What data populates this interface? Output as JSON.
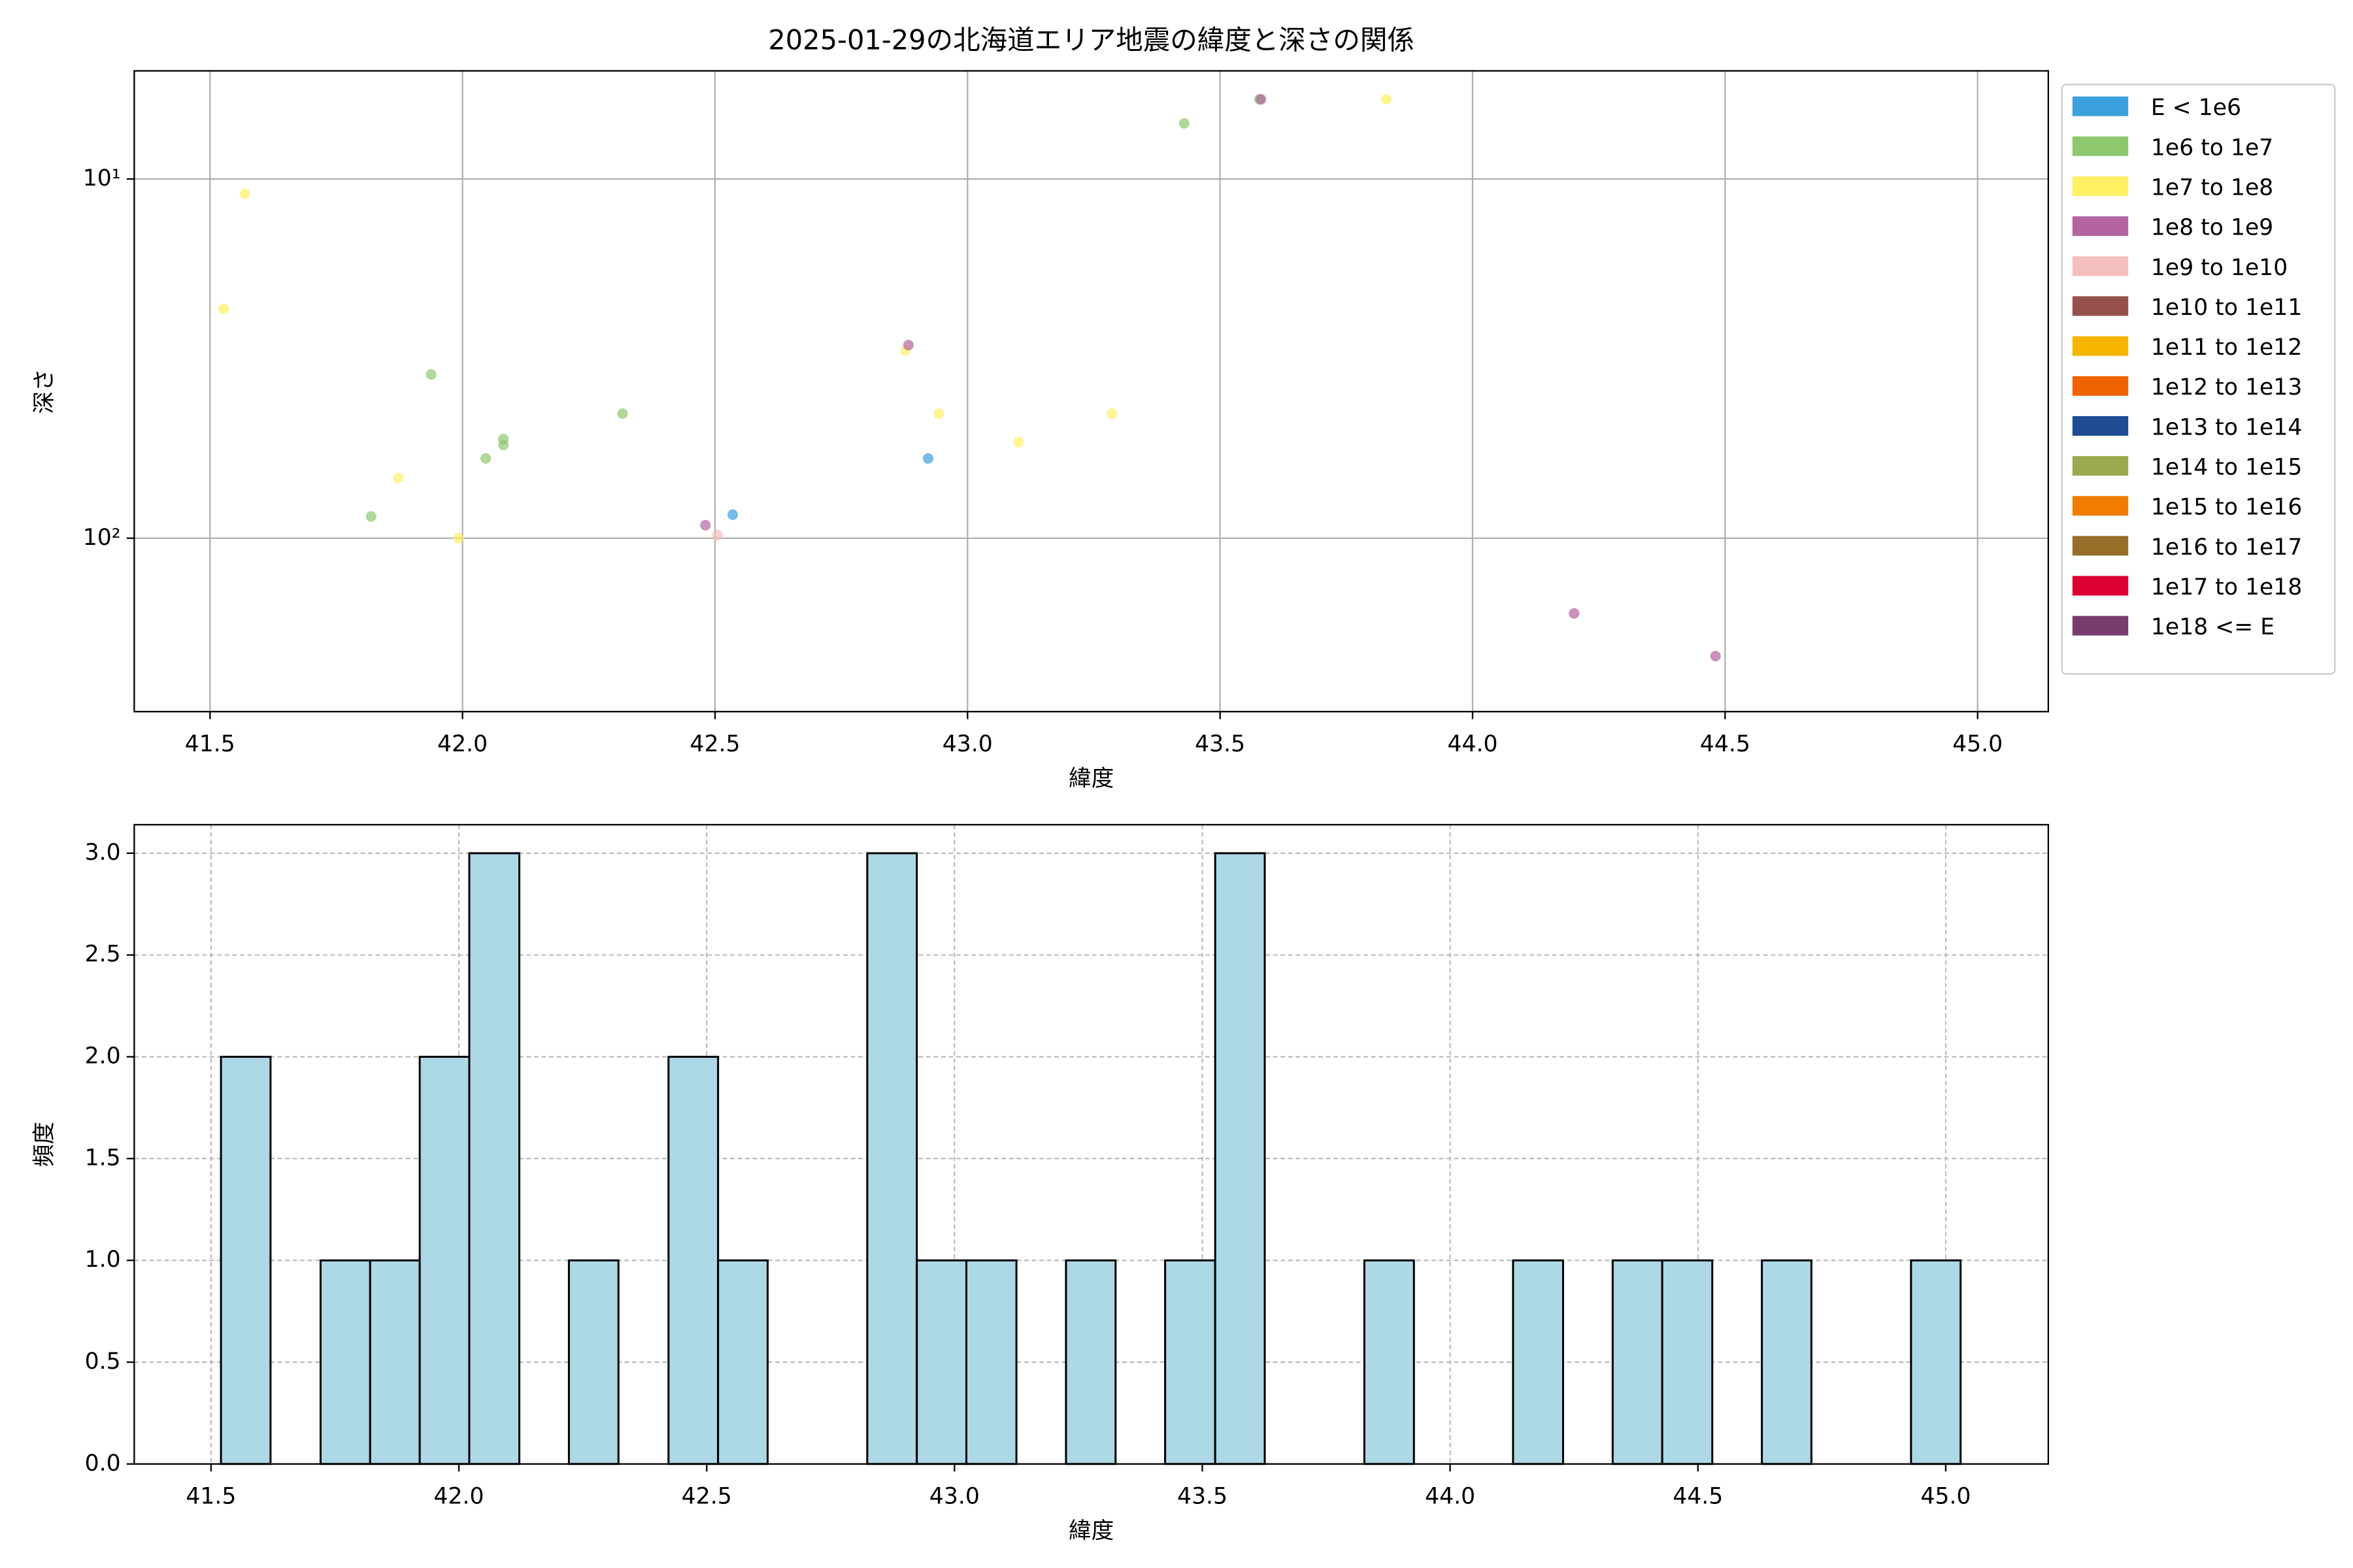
{
  "chart_data": [
    {
      "type": "scatter",
      "title": "2025-01-29の北海道エリア地震の緯度と深さの関係",
      "x_label": "緯度",
      "y_label": "深さ",
      "xlim": [
        41.35,
        45.14
      ],
      "xticks": [
        41.5,
        {
          "value": 42.0,
          "label": "42.0"
        },
        42.5,
        {
          "value": 43.0,
          "label": "43.0"
        },
        43.5,
        {
          "value": 44.0,
          "label": "44.0"
        },
        44.5,
        {
          "value": 45.0,
          "label": "45.0"
        }
      ],
      "ylim": [
        5,
        304
      ],
      "yticks": [
        {
          "value": 10,
          "label": "10¹"
        },
        {
          "value": 100,
          "label": "10²"
        }
      ],
      "log_y": true,
      "y_inverted": true,
      "grid": true,
      "legend": "outside right",
      "series": [
        {
          "name": "E < 1e6",
          "color": "#3ca0dc",
          "x": [
            42.535,
            42.922
          ],
          "values": [
            86,
            60
          ]
        },
        {
          "name": "1e6 to 1e7",
          "color": "#8dc86e",
          "x": [
            41.819,
            41.938,
            42.046,
            42.081,
            42.081,
            42.317,
            43.429,
            43.578
          ],
          "values": [
            87,
            35,
            60,
            53,
            55,
            45,
            7.0,
            6.0
          ]
        },
        {
          "name": "1e7 to 1e8",
          "color": "#fff064",
          "x": [
            41.569,
            41.527,
            41.873,
            41.992,
            42.877,
            42.943,
            43.101,
            43.286,
            43.829
          ],
          "values": [
            11,
            23,
            68,
            100,
            30,
            45,
            54,
            45,
            6.0
          ]
        },
        {
          "name": "1e8 to 1e9",
          "color": "#b464a0",
          "x": [
            42.883,
            42.481,
            43.581,
            44.201,
            44.481
          ],
          "values": [
            29,
            92,
            6.0,
            162,
            213
          ]
        },
        {
          "name": "1e9 to 1e10",
          "color": "#f5bebe",
          "x": [
            42.505
          ],
          "values": [
            98
          ]
        },
        {
          "name": "1e10 to 1e11",
          "color": "#96504b",
          "x": [],
          "values": []
        },
        {
          "name": "1e11 to 1e12",
          "color": "#f5b400",
          "x": [],
          "values": []
        },
        {
          "name": "1e12 to 1e13",
          "color": "#ef6400",
          "x": [],
          "values": []
        },
        {
          "name": "1e13 to 1e14",
          "color": "#1e4b91",
          "x": [],
          "values": []
        },
        {
          "name": "1e14 to 1e15",
          "color": "#9baa50",
          "x": [],
          "values": []
        },
        {
          "name": "1e15 to 1e16",
          "color": "#f07d00",
          "x": [],
          "values": []
        },
        {
          "name": "1e16 to 1e17",
          "color": "#966e28",
          "x": [],
          "values": []
        },
        {
          "name": "1e17 to 1e18",
          "color": "#dc0032",
          "x": [],
          "values": []
        },
        {
          "name": "1e18 <= E",
          "color": "#783c6e",
          "x": [],
          "values": []
        }
      ]
    },
    {
      "type": "histogram",
      "x_label": "緯度",
      "y_label": "頻度",
      "color": "#add8e6",
      "edgecolor": "#000000",
      "grid": true,
      "xlim": [
        41.345,
        45.207
      ],
      "xticks": [
        41.5,
        {
          "value": 42.0,
          "label": "42.0"
        },
        42.5,
        {
          "value": 43.0,
          "label": "43.0"
        },
        43.5,
        {
          "value": 44.0,
          "label": "44.0"
        },
        44.5,
        {
          "value": 45.0,
          "label": "45.0"
        }
      ],
      "ylim": [
        0,
        3.14
      ],
      "yticks": [
        {
          "value": 0,
          "label": "0.0"
        },
        {
          "value": 0.5,
          "label": "0.5"
        },
        {
          "value": 1,
          "label": "1.0"
        },
        {
          "value": 1.5,
          "label": "1.5"
        },
        {
          "value": 2,
          "label": "2.0"
        },
        {
          "value": 2.5,
          "label": "2.5"
        },
        {
          "value": 3,
          "label": "3.0"
        }
      ],
      "bins": [
        41.52,
        41.62,
        41.721,
        41.821,
        41.921,
        42.021,
        42.122,
        42.222,
        42.322,
        42.423,
        42.523,
        42.623,
        42.723,
        42.824,
        42.924,
        43.024,
        43.125,
        43.225,
        43.325,
        43.425,
        43.526,
        43.626,
        43.726,
        43.827,
        43.927,
        44.027,
        44.127,
        44.228,
        44.328,
        44.428,
        44.529,
        44.629,
        44.729,
        44.829,
        44.93,
        45.03
      ],
      "values": [
        2,
        0,
        1,
        1,
        2,
        3,
        0,
        1,
        0,
        2,
        1,
        0,
        0,
        3,
        1,
        1,
        0,
        1,
        0,
        1,
        3,
        0,
        0,
        1,
        0,
        0,
        1,
        0,
        1,
        1,
        0,
        1,
        0,
        0,
        1
      ]
    }
  ]
}
